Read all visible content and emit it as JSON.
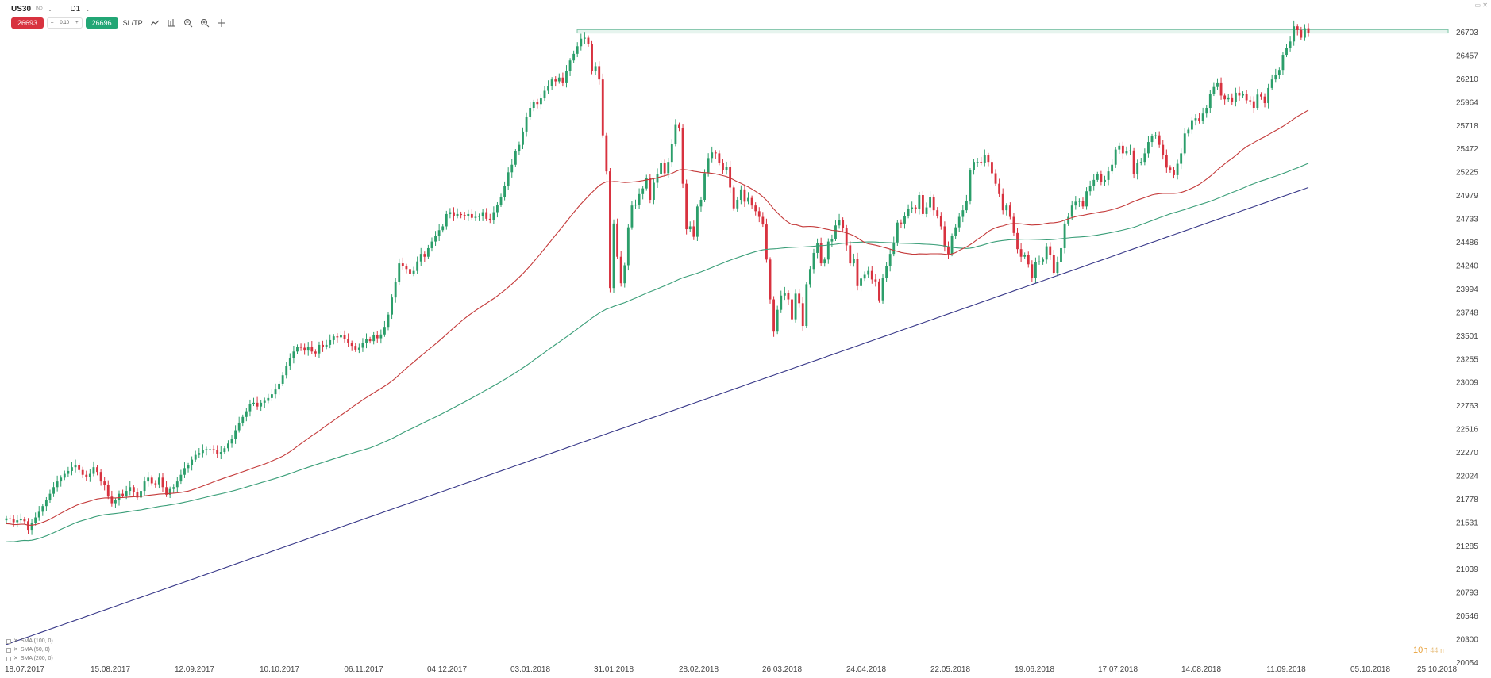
{
  "header": {
    "symbol": "US30",
    "symbol_tag": "IND",
    "timeframe": "D1",
    "sell_price": "26693",
    "spread": "0.10",
    "buy_price": "26696",
    "sltp_label": "SL/TP"
  },
  "countdown": {
    "hours": "10h",
    "minutes": "44m"
  },
  "legend": [
    {
      "label": "SMA (100, 0)"
    },
    {
      "label": "SMA (50, 0)"
    },
    {
      "label": "SMA (200, 0)"
    }
  ],
  "colors": {
    "up": "#2b9e6a",
    "down": "#d8323f",
    "sma50": "#c43a3a",
    "sma100": "#3a9e78",
    "sma200": "#3a3a8a",
    "sell": "#d8323f",
    "buy": "#22a675"
  },
  "chart_data": {
    "type": "candlestick",
    "title": "",
    "y_ticks": [
      26703,
      26457,
      26210,
      25964,
      25718,
      25472,
      25225,
      24979,
      24733,
      24486,
      24240,
      23994,
      23748,
      23501,
      23255,
      23009,
      22763,
      22516,
      22270,
      22024,
      21778,
      21531,
      21285,
      21039,
      20793,
      20546,
      20300,
      20054
    ],
    "x_ticks": [
      "18.07.2017",
      "15.08.2017",
      "12.09.2017",
      "10.10.2017",
      "06.11.2017",
      "04.12.2017",
      "03.01.2018",
      "31.01.2018",
      "28.02.2018",
      "26.03.2018",
      "24.04.2018",
      "22.05.2018",
      "19.06.2018",
      "17.07.2018",
      "14.08.2018",
      "11.09.2018",
      "05.10.2018",
      "25.10.2018"
    ],
    "resistance_zone": [
      26690,
      26725
    ],
    "close": [
      21570,
      21560,
      21530,
      21550,
      21560,
      21540,
      21450,
      21520,
      21580,
      21640,
      21700,
      21760,
      21830,
      21900,
      21960,
      22000,
      22040,
      22070,
      22110,
      22130,
      22080,
      22030,
      22010,
      22040,
      22110,
      22060,
      21960,
      21920,
      21800,
      21730,
      21760,
      21830,
      21810,
      21860,
      21900,
      21850,
      21790,
      21860,
      21960,
      22000,
      21940,
      21930,
      22000,
      21900,
      21820,
      21880,
      21900,
      21960,
      22030,
      22100,
      22130,
      22190,
      22240,
      22260,
      22290,
      22300,
      22300,
      22290,
      22250,
      22270,
      22310,
      22360,
      22410,
      22500,
      22580,
      22640,
      22700,
      22780,
      22790,
      22750,
      22790,
      22810,
      22840,
      22880,
      22930,
      22990,
      23080,
      23180,
      23260,
      23330,
      23380,
      23370,
      23340,
      23380,
      23330,
      23310,
      23400,
      23380,
      23400,
      23450,
      23490,
      23480,
      23500,
      23460,
      23420,
      23390,
      23350,
      23370,
      23420,
      23460,
      23440,
      23500,
      23470,
      23510,
      23590,
      23720,
      23900,
      24060,
      24260,
      24230,
      24200,
      24150,
      24180,
      24280,
      24360,
      24330,
      24420,
      24490,
      24550,
      24610,
      24650,
      24780,
      24800,
      24760,
      24780,
      24770,
      24760,
      24780,
      24740,
      24750,
      24760,
      24800,
      24730,
      24720,
      24800,
      24880,
      24960,
      25080,
      25220,
      25300,
      25440,
      25510,
      25650,
      25800,
      25900,
      25960,
      25940,
      26000,
      26080,
      26130,
      26200,
      26180,
      26220,
      26160,
      26290,
      26400,
      26470,
      26550,
      26630,
      26640,
      26570,
      26290,
      26340,
      26200,
      25610,
      25230,
      24000,
      24680,
      24330,
      24050,
      24240,
      24640,
      24870,
      24880,
      24990,
      25050,
      25160,
      24930,
      25110,
      25200,
      25320,
      25210,
      25330,
      25520,
      25720,
      25690,
      25100,
      24620,
      24650,
      24540,
      24860,
      24930,
      25210,
      25370,
      25430,
      25420,
      25320,
      25240,
      25280,
      25060,
      24840,
      24930,
      25040,
      24910,
      24950,
      24870,
      24810,
      24750,
      24670,
      24300,
      23880,
      23540,
      23770,
      23920,
      23950,
      23880,
      23670,
      23940,
      23840,
      23600,
      24040,
      24200,
      24370,
      24470,
      24260,
      24300,
      24490,
      24520,
      24660,
      24720,
      24630,
      24450,
      24260,
      24310,
      24020,
      24100,
      24140,
      24180,
      24090,
      24070,
      23870,
      24110,
      24230,
      24360,
      24480,
      24690,
      24680,
      24760,
      24830,
      24850,
      24830,
      24980,
      24780,
      24850,
      24960,
      24820,
      24760,
      24650,
      24430,
      24360,
      24550,
      24640,
      24750,
      24820,
      24920,
      25240,
      25330,
      25330,
      25320,
      25400,
      25330,
      25210,
      25100,
      24990,
      24820,
      24870,
      24750,
      24580,
      24410,
      24330,
      24350,
      24250,
      24110,
      24270,
      24280,
      24300,
      24440,
      24350,
      24160,
      24270,
      24420,
      24680,
      24750,
      24870,
      24910,
      24920,
      24860,
      25020,
      25080,
      25140,
      25200,
      25120,
      25140,
      25230,
      25300,
      25460,
      25500,
      25420,
      25440,
      25450,
      25200,
      25320,
      25330,
      25420,
      25540,
      25600,
      25610,
      25510,
      25400,
      25270,
      25240,
      25190,
      25310,
      25420,
      25630,
      25670,
      25770,
      25790,
      25760,
      25840,
      25900,
      26050,
      26120,
      26160,
      26030,
      25990,
      26010,
      25960,
      26060,
      26030,
      26050,
      25980,
      25970,
      25900,
      26040,
      26020,
      25950,
      26110,
      26200,
      26250,
      26300,
      26460,
      26530,
      26600,
      26760,
      26720,
      26640,
      26740,
      26693
    ],
    "sma50_endpoints": [
      21200,
      25740
    ],
    "sma100_endpoints": [
      21020,
      25250
    ],
    "sma200_endpoints": [
      20240,
      25060
    ]
  }
}
